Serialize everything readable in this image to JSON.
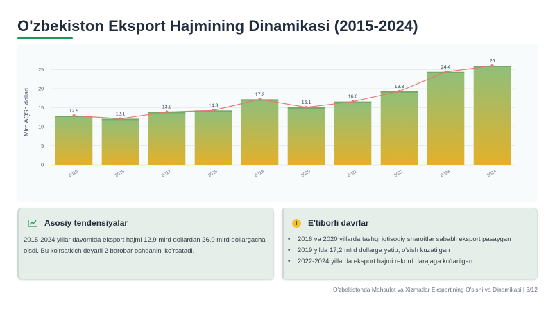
{
  "page": {
    "title": "O'zbekiston Eksport Hajmining Dinamikasi (2015-2024)",
    "accent_color": "#1a9a57",
    "footer": "O'zbekistonda Mahsulot va Xizmatlar Eksportining O'sishi va Dinamikasi | 3/12"
  },
  "chart_data": {
    "type": "bar",
    "title": "",
    "xlabel": "",
    "ylabel": "Mlrd AQSh dollari",
    "categories": [
      "2015",
      "2016",
      "2017",
      "2018",
      "2019",
      "2020",
      "2021",
      "2022",
      "2023",
      "2024"
    ],
    "values": [
      12.9,
      12.1,
      13.9,
      14.3,
      17.2,
      15.1,
      16.6,
      19.3,
      24.4,
      26.0
    ],
    "value_labels": [
      "12.9",
      "12.1",
      "13.9",
      "14.3",
      "17.2",
      "15.1",
      "16.6",
      "19.3",
      "24.4",
      "26"
    ],
    "ylim": [
      0,
      28
    ],
    "yticks": [
      0,
      5,
      10,
      15,
      20,
      25
    ],
    "grid": true,
    "overlay_line": true,
    "colors": {
      "bar_top": "#8fbf7a",
      "bar_bottom": "#e3b12a",
      "line": "#e8766f",
      "grid": "#e6ebef"
    }
  },
  "panels": {
    "trends": {
      "icon": "chart-line-icon",
      "title": "Asosiy tendensiyalar",
      "text": "2015-2024 yillar davomida eksport hajmi 12,9 mlrd dollardan 26,0 mlrd dollargacha o'sdi. Bu ko'rsatkich deyarli 2 barobar oshganini ko'rsatadi."
    },
    "notable": {
      "icon": "info-icon",
      "title": "E'tiborli davrlar",
      "items": [
        "2016 va 2020 yillarda tashqi iqtisodiy sharoitlar sababli eksport pasaygan",
        "2019 yilda 17,2 mlrd dollarga yetib, o'sish kuzatilgan",
        "2022-2024 yillarda eksport hajmi rekord darajaga ko'tarilgan"
      ]
    }
  }
}
